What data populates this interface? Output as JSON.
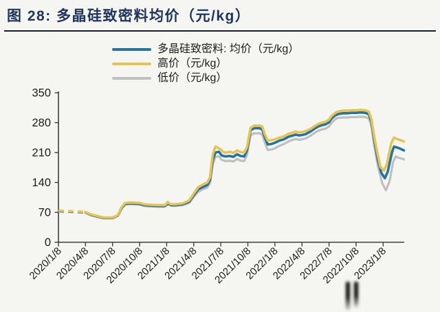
{
  "figure": {
    "title": "图 28: 多晶硅致密料均价（元/kg）",
    "title_color": "#1e3560"
  },
  "legend": [
    {
      "label": "多晶硅致密料: 均价（元/kg）",
      "color": "#2273a8"
    },
    {
      "label": "高价（元/kg）",
      "color": "#e6c44e"
    },
    {
      "label": "低价（元/kg）",
      "color": "#bfbfbf"
    }
  ],
  "chart_data": {
    "type": "line",
    "title": "图 28: 多晶硅致密料均价（元/kg）",
    "ylabel": "",
    "xlabel": "",
    "ylim": [
      0,
      350
    ],
    "y_ticks": [
      0,
      70,
      140,
      210,
      280,
      350
    ],
    "x_tick_labels": [
      "2020/1/8",
      "2020/4/8",
      "2020/7/8",
      "2020/10/8",
      "2021/1/8",
      "2021/4/8",
      "2021/7/8",
      "2021/10/8",
      "2022/1/8",
      "2022/4/8",
      "2022/7/8",
      "2022/10/8",
      "2023/1/8"
    ],
    "months_per_tick": 3,
    "grid": false,
    "legend_position": "top",
    "dashed_until_month": 3,
    "series": [
      {
        "name": "多晶硅致密料: 均价（元/kg）",
        "color": "#2273a8",
        "width": 3.6,
        "points": [
          [
            0,
            73
          ],
          [
            1,
            72
          ],
          [
            2,
            71
          ],
          [
            3,
            70
          ],
          [
            3.5,
            65
          ],
          [
            4,
            62
          ],
          [
            5,
            57
          ],
          [
            6,
            57
          ],
          [
            6.6,
            63
          ],
          [
            7,
            80
          ],
          [
            7.4,
            90
          ],
          [
            8,
            91
          ],
          [
            9,
            90
          ],
          [
            9.5,
            87
          ],
          [
            10,
            86
          ],
          [
            11,
            85
          ],
          [
            11.8,
            85
          ],
          [
            12.1,
            90
          ],
          [
            12.5,
            87
          ],
          [
            13,
            87
          ],
          [
            13.8,
            89
          ],
          [
            14.5,
            95
          ],
          [
            15,
            110
          ],
          [
            15.5,
            124
          ],
          [
            16,
            129
          ],
          [
            16.5,
            134
          ],
          [
            16.8,
            145
          ],
          [
            17.1,
            192
          ],
          [
            17.4,
            210
          ],
          [
            17.8,
            212
          ],
          [
            18.1,
            203
          ],
          [
            18.5,
            201
          ],
          [
            19,
            202
          ],
          [
            19.4,
            200
          ],
          [
            19.8,
            206
          ],
          [
            20.2,
            202
          ],
          [
            20.6,
            201
          ],
          [
            20.9,
            215
          ],
          [
            21.3,
            262
          ],
          [
            21.7,
            267
          ],
          [
            22.3,
            267
          ],
          [
            22.6,
            264
          ],
          [
            22.9,
            245
          ],
          [
            23.2,
            229
          ],
          [
            23.6,
            230
          ],
          [
            24,
            233
          ],
          [
            24.5,
            238
          ],
          [
            25,
            241
          ],
          [
            25.5,
            247
          ],
          [
            26,
            250
          ],
          [
            26.3,
            252
          ],
          [
            26.7,
            250
          ],
          [
            27,
            251
          ],
          [
            27.4,
            253
          ],
          [
            28,
            260
          ],
          [
            28.4,
            266
          ],
          [
            28.8,
            271
          ],
          [
            29.2,
            274
          ],
          [
            29.6,
            276
          ],
          [
            30,
            281
          ],
          [
            30.3,
            290
          ],
          [
            30.7,
            297
          ],
          [
            31,
            300
          ],
          [
            31.5,
            302
          ],
          [
            32,
            302
          ],
          [
            32.5,
            303
          ],
          [
            33,
            303
          ],
          [
            33.5,
            304
          ],
          [
            34,
            303
          ],
          [
            34.4,
            300
          ],
          [
            34.7,
            282
          ],
          [
            35,
            240
          ],
          [
            35.4,
            195
          ],
          [
            35.8,
            162
          ],
          [
            36.2,
            150
          ],
          [
            36.5,
            165
          ],
          [
            37,
            212
          ],
          [
            37.2,
            224
          ],
          [
            37.5,
            222
          ],
          [
            37.8,
            220
          ],
          [
            38.3,
            215
          ]
        ]
      },
      {
        "name": "高价（元/kg）",
        "color": "#e6c44e",
        "width": 3.6,
        "points": [
          [
            0,
            74
          ],
          [
            1,
            73
          ],
          [
            2,
            72
          ],
          [
            3,
            71
          ],
          [
            3.5,
            66
          ],
          [
            4,
            63
          ],
          [
            5,
            58
          ],
          [
            6,
            58
          ],
          [
            6.6,
            64
          ],
          [
            7,
            82
          ],
          [
            7.4,
            92
          ],
          [
            8,
            93
          ],
          [
            9,
            92
          ],
          [
            9.5,
            89
          ],
          [
            10,
            88
          ],
          [
            11,
            87
          ],
          [
            11.8,
            87
          ],
          [
            12.1,
            93
          ],
          [
            12.5,
            89
          ],
          [
            13,
            89
          ],
          [
            13.8,
            91
          ],
          [
            14.5,
            98
          ],
          [
            15,
            114
          ],
          [
            15.5,
            129
          ],
          [
            16,
            135
          ],
          [
            16.5,
            140
          ],
          [
            16.8,
            152
          ],
          [
            17.1,
            205
          ],
          [
            17.4,
            224
          ],
          [
            17.7,
            221
          ],
          [
            18,
            217
          ],
          [
            18.3,
            211
          ],
          [
            18.6,
            210
          ],
          [
            19,
            212
          ],
          [
            19.4,
            209
          ],
          [
            19.8,
            215
          ],
          [
            20.2,
            211
          ],
          [
            20.6,
            210
          ],
          [
            20.9,
            222
          ],
          [
            21.3,
            268
          ],
          [
            21.7,
            273
          ],
          [
            22.3,
            273
          ],
          [
            22.6,
            271
          ],
          [
            22.9,
            252
          ],
          [
            23.2,
            238
          ],
          [
            23.6,
            239
          ],
          [
            24,
            241
          ],
          [
            24.5,
            245
          ],
          [
            25,
            248
          ],
          [
            25.5,
            254
          ],
          [
            26,
            257
          ],
          [
            26.3,
            259
          ],
          [
            26.7,
            257
          ],
          [
            27,
            258
          ],
          [
            27.4,
            260
          ],
          [
            28,
            266
          ],
          [
            28.4,
            272
          ],
          [
            28.8,
            277
          ],
          [
            29.2,
            280
          ],
          [
            29.6,
            282
          ],
          [
            30,
            287
          ],
          [
            30.3,
            296
          ],
          [
            30.7,
            303
          ],
          [
            31,
            306
          ],
          [
            31.5,
            308
          ],
          [
            32,
            308
          ],
          [
            32.5,
            309
          ],
          [
            33,
            309
          ],
          [
            33.5,
            310
          ],
          [
            34,
            309
          ],
          [
            34.4,
            306
          ],
          [
            34.7,
            288
          ],
          [
            35,
            248
          ],
          [
            35.4,
            205
          ],
          [
            35.7,
            176
          ],
          [
            36.1,
            168
          ],
          [
            36.4,
            182
          ],
          [
            36.9,
            232
          ],
          [
            37.2,
            245
          ],
          [
            37.5,
            242
          ],
          [
            37.8,
            240
          ],
          [
            38.3,
            236
          ]
        ]
      },
      {
        "name": "低价（元/kg）",
        "color": "#bfbfbf",
        "width": 3.2,
        "points": [
          [
            0,
            72
          ],
          [
            1,
            71
          ],
          [
            2,
            70
          ],
          [
            3,
            69
          ],
          [
            3.5,
            64
          ],
          [
            4,
            61
          ],
          [
            5,
            56
          ],
          [
            6,
            56
          ],
          [
            6.6,
            62
          ],
          [
            7,
            78
          ],
          [
            7.4,
            88
          ],
          [
            8,
            89
          ],
          [
            9,
            88
          ],
          [
            9.5,
            85
          ],
          [
            10,
            84
          ],
          [
            11,
            83
          ],
          [
            11.8,
            83
          ],
          [
            12.1,
            95
          ],
          [
            12.5,
            85
          ],
          [
            13,
            85
          ],
          [
            13.8,
            87
          ],
          [
            14.5,
            92
          ],
          [
            15,
            106
          ],
          [
            15.5,
            118
          ],
          [
            16,
            124
          ],
          [
            16.5,
            128
          ],
          [
            16.8,
            138
          ],
          [
            17.1,
            182
          ],
          [
            17.4,
            200
          ],
          [
            17.8,
            201
          ],
          [
            18.1,
            193
          ],
          [
            18.5,
            190
          ],
          [
            19,
            191
          ],
          [
            19.4,
            189
          ],
          [
            19.8,
            195
          ],
          [
            20.2,
            191
          ],
          [
            20.6,
            190
          ],
          [
            20.9,
            205
          ],
          [
            21.3,
            250
          ],
          [
            21.7,
            255
          ],
          [
            22.3,
            255
          ],
          [
            22.6,
            252
          ],
          [
            22.9,
            232
          ],
          [
            23.2,
            216
          ],
          [
            23.6,
            217
          ],
          [
            24,
            220
          ],
          [
            24.5,
            226
          ],
          [
            25,
            230
          ],
          [
            25.5,
            236
          ],
          [
            26,
            240
          ],
          [
            26.3,
            242
          ],
          [
            26.7,
            240
          ],
          [
            27,
            241
          ],
          [
            27.4,
            243
          ],
          [
            28,
            250
          ],
          [
            28.4,
            256
          ],
          [
            28.8,
            261
          ],
          [
            29.2,
            264
          ],
          [
            29.6,
            266
          ],
          [
            30,
            271
          ],
          [
            30.3,
            280
          ],
          [
            30.7,
            288
          ],
          [
            31,
            291
          ],
          [
            31.5,
            292
          ],
          [
            32,
            292
          ],
          [
            32.5,
            293
          ],
          [
            33,
            293
          ],
          [
            33.5,
            294
          ],
          [
            34,
            293
          ],
          [
            34.4,
            290
          ],
          [
            34.7,
            272
          ],
          [
            35,
            228
          ],
          [
            35.4,
            180
          ],
          [
            35.9,
            138
          ],
          [
            36.3,
            122
          ],
          [
            36.7,
            142
          ],
          [
            37.1,
            188
          ],
          [
            37.4,
            201
          ],
          [
            37.7,
            198
          ],
          [
            38.3,
            194
          ]
        ]
      }
    ]
  }
}
